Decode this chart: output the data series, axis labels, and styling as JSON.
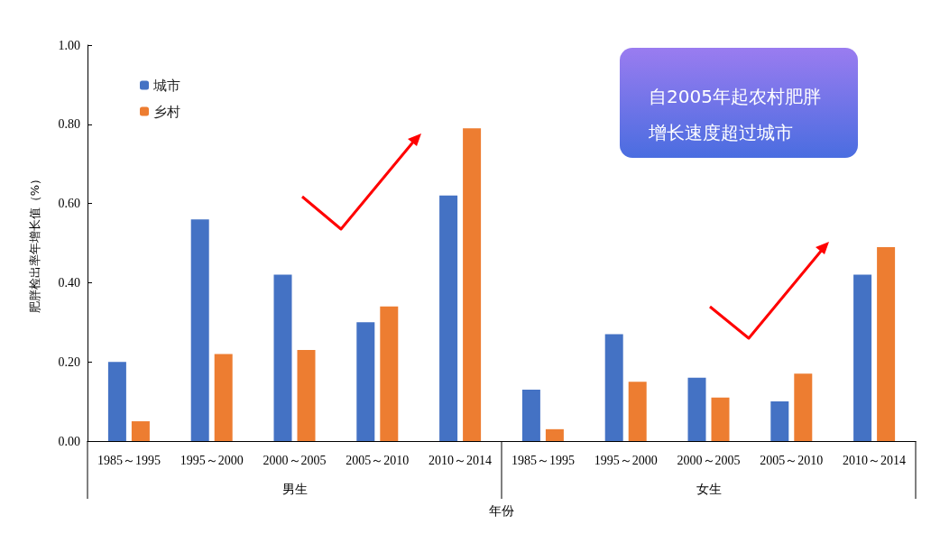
{
  "chart_data": {
    "type": "bar",
    "ylabel": "肥胖检出率年增长值（%）",
    "xlabel": "年份",
    "categories": [
      "1985～1995",
      "1995～2000",
      "2000～2005",
      "2005～2010",
      "2010～2014",
      "1985～1995",
      "1995～2000",
      "2000～2005",
      "2005～2010",
      "2010～2014"
    ],
    "series": [
      {
        "name": "城市",
        "color": "#4472c4",
        "values": [
          0.2,
          0.56,
          0.42,
          0.3,
          0.62,
          0.13,
          0.27,
          0.16,
          0.1,
          0.42
        ]
      },
      {
        "name": "乡村",
        "color": "#ed7d31",
        "values": [
          0.05,
          0.22,
          0.23,
          0.34,
          0.79,
          0.03,
          0.15,
          0.11,
          0.17,
          0.49
        ]
      }
    ],
    "ylim": [
      0,
      1
    ],
    "yticks": [
      {
        "value": 0,
        "label": "0.00"
      },
      {
        "value": 0.2,
        "label": "0.20"
      },
      {
        "value": 0.4,
        "label": "0.40"
      },
      {
        "value": 0.6,
        "label": "0.60"
      },
      {
        "value": 0.8,
        "label": "0.80"
      },
      {
        "value": 1,
        "label": "1.00"
      }
    ],
    "grid": false,
    "legend": "top left",
    "annotations": [
      "自2005年起农村肥胖增长速度超过城市",
      "男生",
      "女生"
    ]
  }
}
